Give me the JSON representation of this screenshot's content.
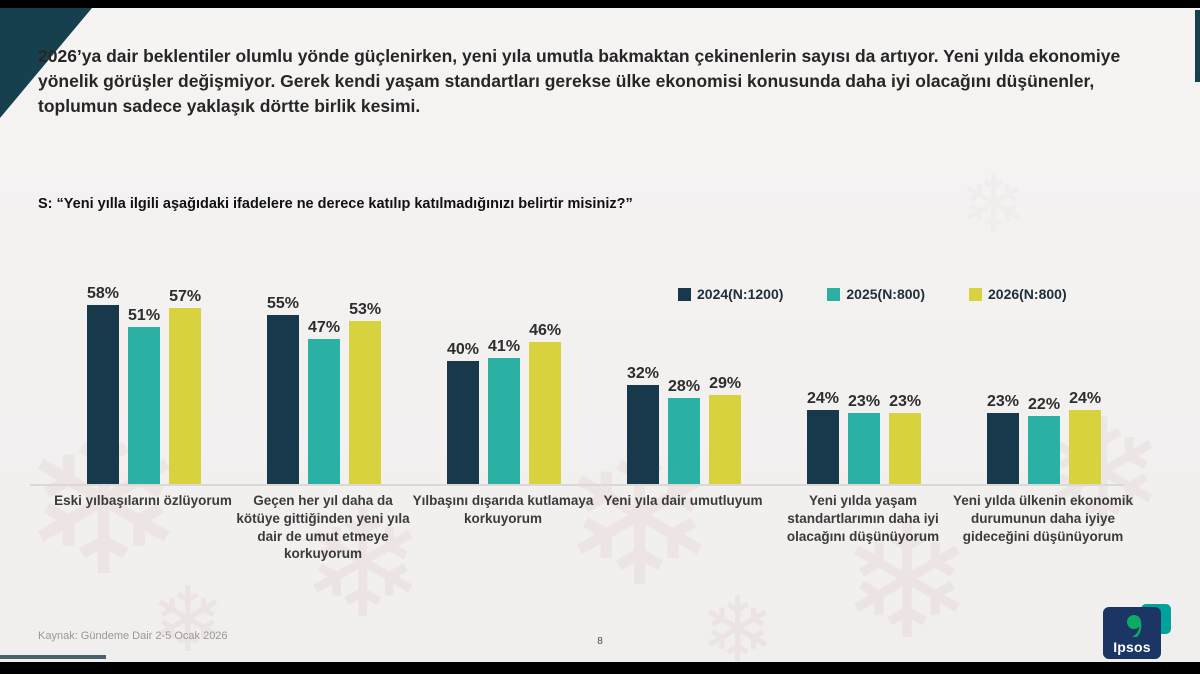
{
  "slide": {
    "headline": "2026’ya dair beklentiler olumlu yönde güçlenirken, yeni yıla umutla bakmaktan çekinenlerin sayısı da artıyor. Yeni yılda ekonomiye yönelik görüşler değişmiyor. Gerek kendi yaşam standartları gerekse ülke ekonomisi konusunda daha iyi olacağını düşünenler, toplumun sadece yaklaşık dörtte birlik kesimi.",
    "question": "S: “Yeni yılla ilgili aşağıdaki ifadelere ne derece katılıp katılmadığınızı belirtir misiniz?”",
    "footer_source": "Kaynak: Gündeme Dair 2-5 Ocak 2026",
    "page_number": "8",
    "logo_text": "Ipsos"
  },
  "colors": {
    "series_2024": "#17394b",
    "series_2025": "#2bb1a4",
    "series_2026": "#d9d23f",
    "corner_triangle": "#17404f",
    "slide_background": "#f3f1f0",
    "logo_blue": "#1b3564",
    "logo_green": "#00a651"
  },
  "chart_data": {
    "type": "bar",
    "title": "",
    "categories": [
      "Eski yılbaşılarını özlüyorum",
      "Geçen her yıl daha da kötüye gittiğinden yeni yıla dair de umut etmeye korkuyorum",
      "Yılbaşını dışarıda kutlamaya korkuyorum",
      "Yeni yıla dair umutluyum",
      "Yeni yılda yaşam standartlarımın daha iyi olacağını düşünüyorum",
      "Yeni yılda ülkenin ekonomik durumunun daha iyiye gideceğini düşünüyorum"
    ],
    "series": [
      {
        "name": "2024(N:1200)",
        "color": "#17394b",
        "values": [
          58,
          55,
          40,
          32,
          24,
          23
        ]
      },
      {
        "name": "2025(N:800)",
        "color": "#2bb1a4",
        "values": [
          51,
          47,
          41,
          28,
          23,
          22
        ]
      },
      {
        "name": "2026(N:800)",
        "color": "#d9d23f",
        "values": [
          57,
          53,
          46,
          29,
          23,
          24
        ]
      }
    ],
    "value_suffix": "%",
    "ylim": [
      0,
      60
    ],
    "grid": false,
    "legend_position": "top-right",
    "xlabel": "",
    "ylabel": ""
  }
}
